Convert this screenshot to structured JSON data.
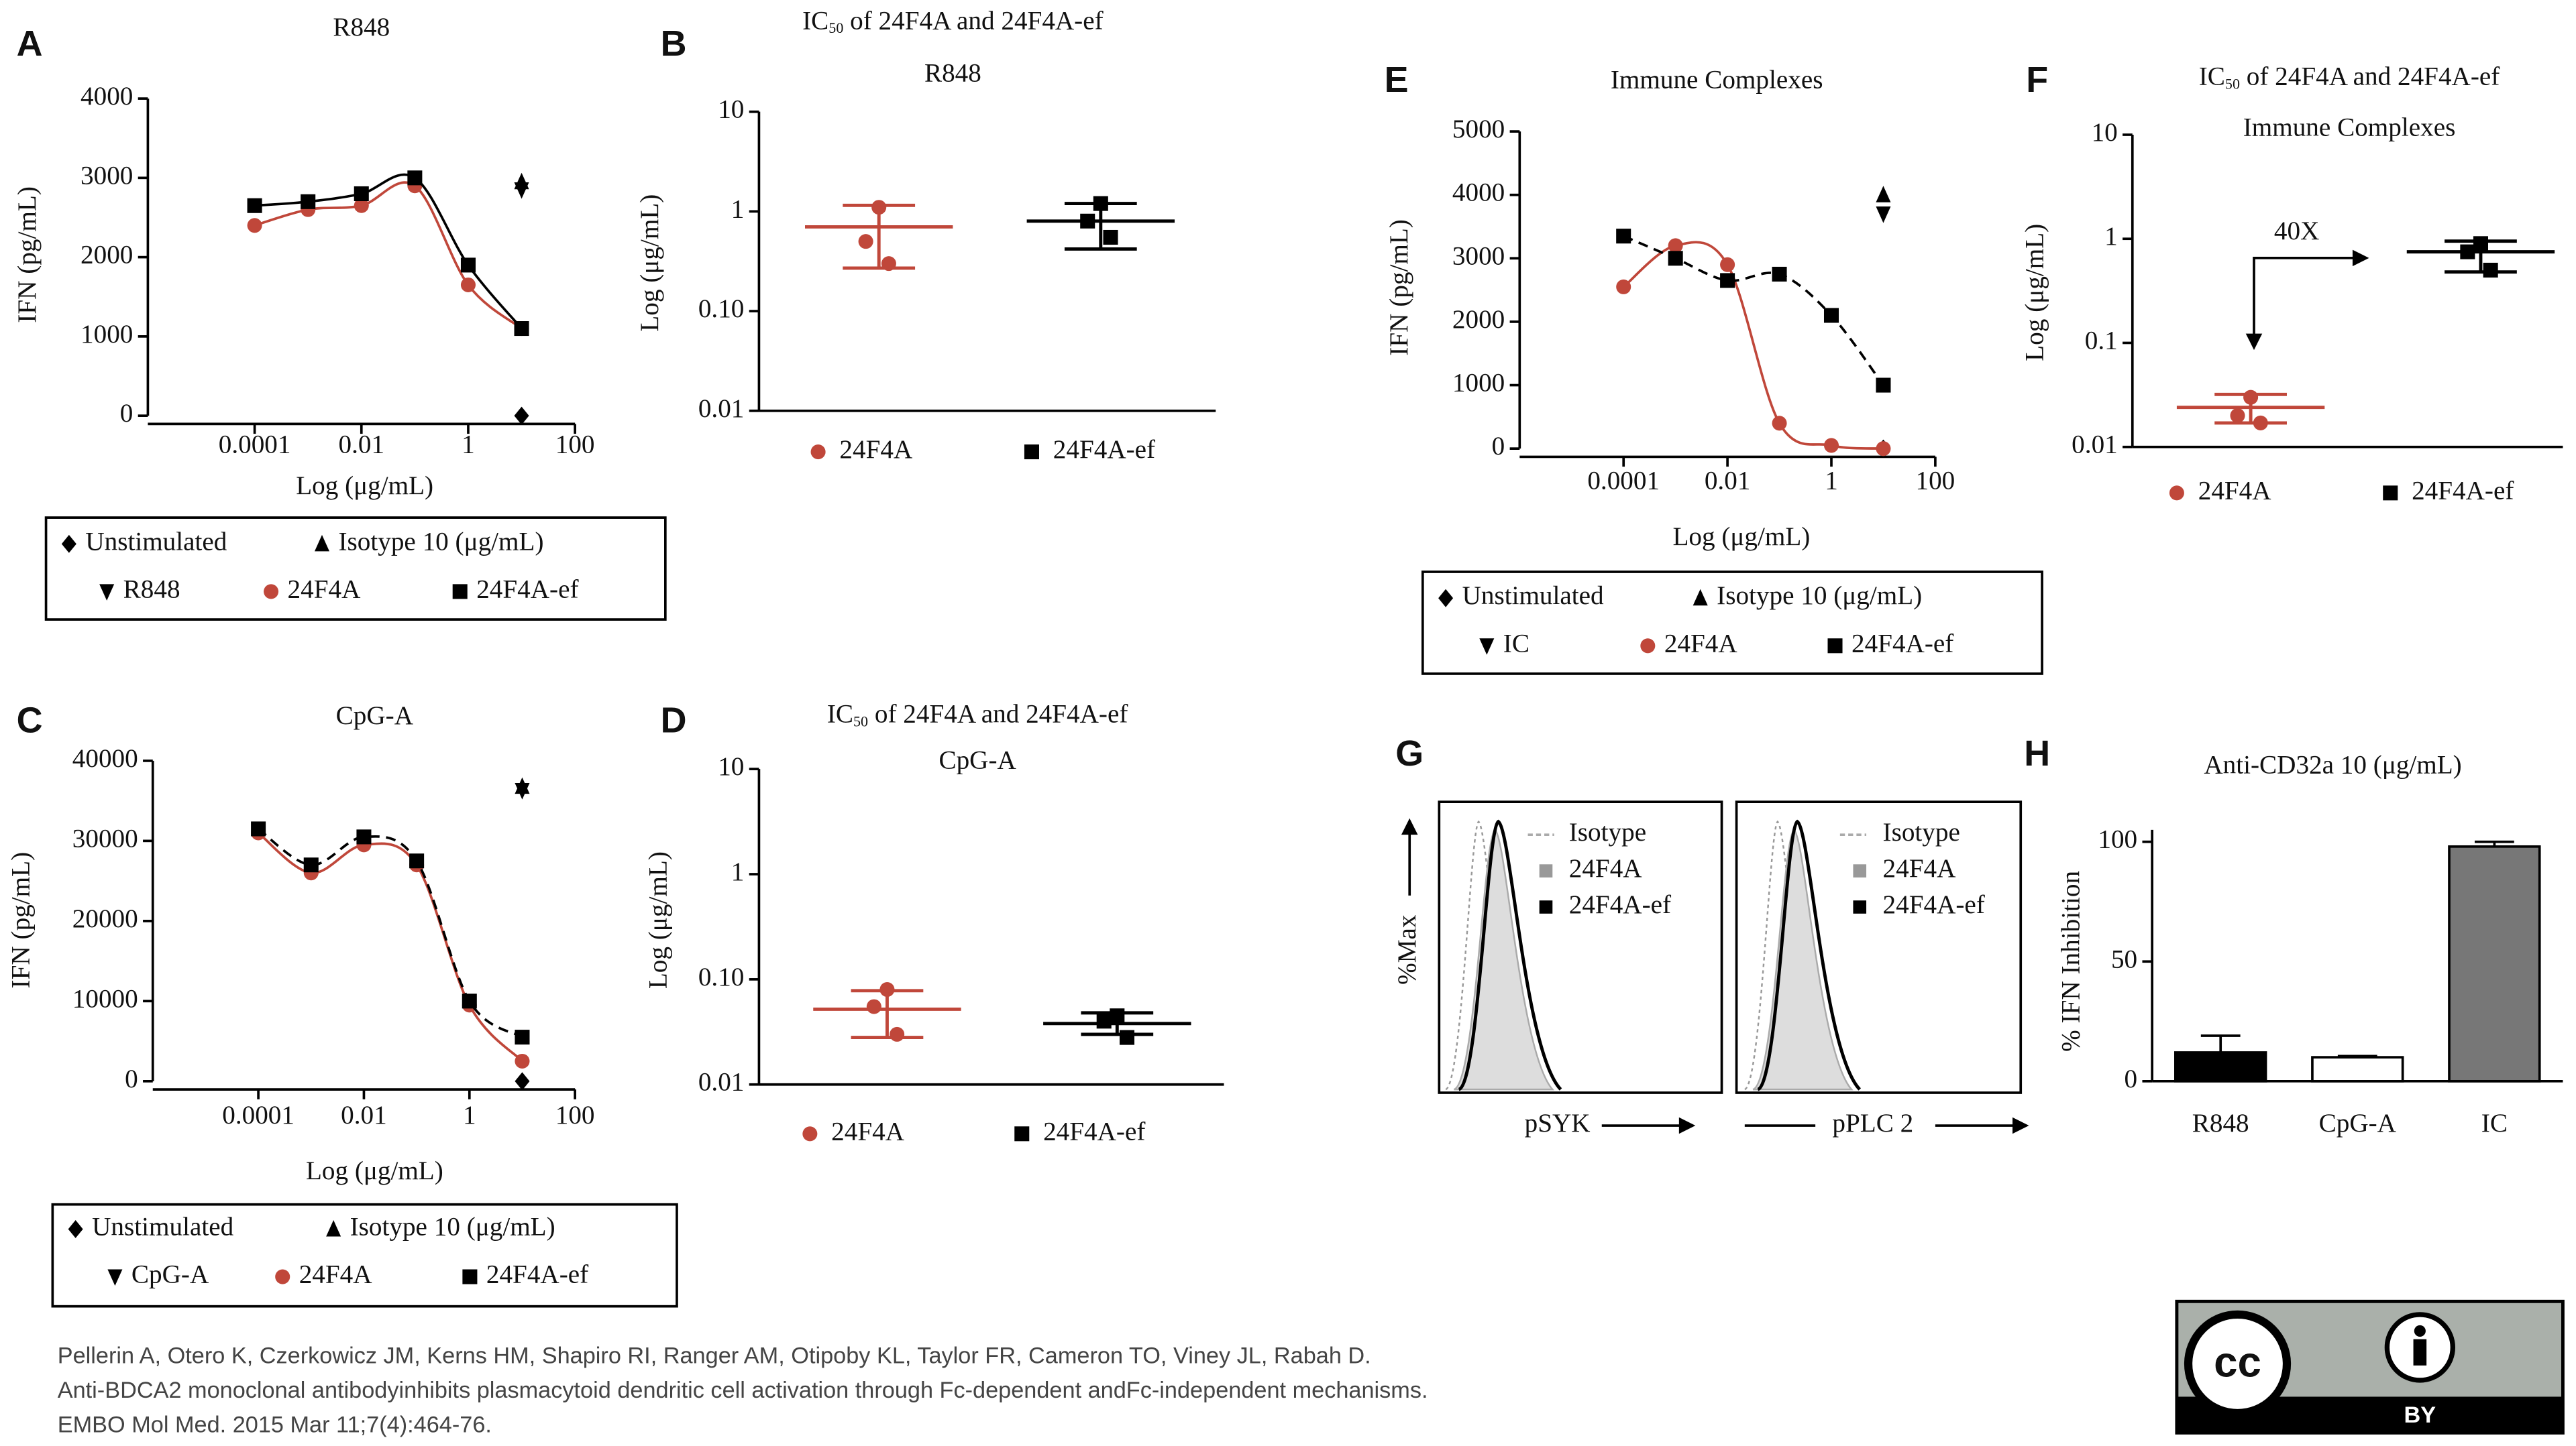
{
  "chart_data": [
    {
      "type": "line",
      "panel": "A",
      "title": "R848",
      "xlabel": "Log (μg/mL)",
      "ylabel": "IFN (pg/mL)",
      "xscale": "log",
      "xlim": [
        1e-06,
        100
      ],
      "xticks": [
        0.0001,
        0.01,
        1,
        100
      ],
      "ylim": [
        0,
        4000
      ],
      "yticks": [
        0,
        1000,
        2000,
        3000,
        4000
      ],
      "x": [
        0.0001,
        0.001,
        0.01,
        0.1,
        1,
        10
      ],
      "series": [
        {
          "name": "Unstimulated",
          "color": "#000000",
          "marker": "diamond",
          "values": [
            null,
            null,
            null,
            null,
            null,
            0
          ]
        },
        {
          "name": "Isotype 10 (μg/mL)",
          "color": "#000000",
          "marker": "triangle-up",
          "values": [
            null,
            null,
            null,
            null,
            null,
            2950
          ]
        },
        {
          "name": "R848",
          "color": "#000000",
          "marker": "triangle-down",
          "values": [
            null,
            null,
            null,
            null,
            null,
            2850
          ]
        },
        {
          "name": "24F4A",
          "color": "#c0473a",
          "marker": "circle",
          "fit": true,
          "values": [
            2400,
            2600,
            2650,
            2900,
            1650,
            1100
          ]
        },
        {
          "name": "24F4A-ef",
          "color": "#000000",
          "marker": "square",
          "fit": true,
          "values": [
            2650,
            2700,
            2800,
            3000,
            1900,
            1100
          ]
        }
      ]
    },
    {
      "type": "dot",
      "panel": "B",
      "title": "IC",
      "title_sub": "50",
      "title_rest": "of 24F4A and 24F4A-ef",
      "subtitle": "R848",
      "ylabel": "Log (μg/mL)",
      "yscale": "log",
      "ylim": [
        0.01,
        10
      ],
      "yticks": [
        0.01,
        {
          "value": 0.1,
          "label": "0.10"
        },
        1,
        10
      ],
      "series": [
        {
          "name": "24F4A",
          "color": "#c0473a",
          "marker": "circle",
          "values": [
            1.1,
            0.5,
            0.3
          ],
          "mean": 0.7,
          "range": [
            0.27,
            1.15
          ]
        },
        {
          "name": "24F4A-ef",
          "color": "#000000",
          "marker": "square",
          "values": [
            1.2,
            0.8,
            0.55
          ],
          "mean": 0.8,
          "range": [
            0.42,
            1.2
          ]
        }
      ]
    },
    {
      "type": "line",
      "panel": "C",
      "title": "CpG-A",
      "xlabel": "Log (μg/mL)",
      "ylabel": "IFN (pg/mL)",
      "xscale": "log",
      "xlim": [
        1e-06,
        100
      ],
      "xticks": [
        0.0001,
        0.01,
        1,
        100
      ],
      "ylim": [
        0,
        40000
      ],
      "yticks": [
        0,
        10000,
        20000,
        30000,
        40000
      ],
      "x": [
        0.0001,
        0.001,
        0.01,
        0.1,
        1,
        10
      ],
      "series": [
        {
          "name": "Unstimulated",
          "color": "#000000",
          "marker": "diamond",
          "values": [
            null,
            null,
            null,
            null,
            null,
            0
          ]
        },
        {
          "name": "Isotype 10 (μg/mL)",
          "color": "#000000",
          "marker": "triangle-up",
          "values": [
            null,
            null,
            null,
            null,
            null,
            36800
          ]
        },
        {
          "name": "CpG-A",
          "color": "#000000",
          "marker": "triangle-down",
          "values": [
            null,
            null,
            null,
            null,
            null,
            36300
          ]
        },
        {
          "name": "24F4A",
          "color": "#c0473a",
          "marker": "circle",
          "fit": true,
          "values": [
            31000,
            26000,
            29500,
            27000,
            9500,
            2500
          ]
        },
        {
          "name": "24F4A-ef",
          "color": "#000000",
          "marker": "square",
          "fit": true,
          "dash": true,
          "values": [
            31500,
            27000,
            30500,
            27500,
            10000,
            5500
          ]
        }
      ]
    },
    {
      "type": "dot",
      "panel": "D",
      "title": "IC",
      "title_sub": "50",
      "title_rest": "of 24F4A and 24F4A-ef",
      "subtitle": "CpG-A",
      "ylabel": "Log (μg/mL)",
      "yscale": "log",
      "ylim": [
        0.01,
        10
      ],
      "yticks": [
        0.01,
        {
          "value": 0.1,
          "label": "0.10"
        },
        1,
        10
      ],
      "series": [
        {
          "name": "24F4A",
          "color": "#c0473a",
          "marker": "circle",
          "values": [
            0.08,
            0.055,
            0.03
          ],
          "mean": 0.052,
          "range": [
            0.028,
            0.078
          ]
        },
        {
          "name": "24F4A-ef",
          "color": "#000000",
          "marker": "square",
          "values": [
            0.045,
            0.04,
            0.028
          ],
          "mean": 0.038,
          "range": [
            0.03,
            0.048
          ]
        }
      ]
    },
    {
      "type": "line",
      "panel": "E",
      "title": "Immune Complexes",
      "xlabel": "Log (μg/mL)",
      "ylabel": "IFN (pg/mL)",
      "xscale": "log",
      "xlim": [
        1e-06,
        100
      ],
      "xticks": [
        0.0001,
        0.01,
        1,
        100
      ],
      "ylim": [
        0,
        5000
      ],
      "yticks": [
        0,
        1000,
        2000,
        3000,
        4000,
        5000
      ],
      "x": [
        0.0001,
        0.001,
        0.01,
        0.1,
        1,
        10
      ],
      "series": [
        {
          "name": "Unstimulated",
          "color": "#000000",
          "marker": "diamond",
          "values": [
            null,
            null,
            null,
            null,
            null,
            0
          ]
        },
        {
          "name": "Isotype 10 (μg/mL)",
          "color": "#000000",
          "marker": "triangle-up",
          "values": [
            null,
            null,
            null,
            null,
            null,
            4000
          ]
        },
        {
          "name": "IC",
          "color": "#000000",
          "marker": "triangle-down",
          "values": [
            null,
            null,
            null,
            null,
            null,
            3700
          ]
        },
        {
          "name": "24F4A",
          "color": "#c0473a",
          "marker": "circle",
          "fit": true,
          "values": [
            2550,
            3200,
            2900,
            400,
            50,
            0
          ]
        },
        {
          "name": "24F4A-ef",
          "color": "#000000",
          "marker": "square",
          "fit": true,
          "dash": true,
          "values": [
            3350,
            3000,
            2650,
            2750,
            2100,
            1000
          ]
        }
      ]
    },
    {
      "type": "dot",
      "panel": "F",
      "title": "IC",
      "title_sub": "50",
      "title_rest": "of 24F4A and 24F4A-ef",
      "subtitle": "Immune Complexes",
      "ylabel": "Log (μg/mL)",
      "yscale": "log",
      "ylim": [
        0.01,
        10
      ],
      "yticks": [
        0.01,
        0.1,
        1,
        10
      ],
      "annotation": "40X",
      "series": [
        {
          "name": "24F4A",
          "color": "#c0473a",
          "marker": "circle",
          "values": [
            0.03,
            0.02,
            0.017
          ],
          "mean": 0.024,
          "range": [
            0.017,
            0.032
          ]
        },
        {
          "name": "24F4A-ef",
          "color": "#000000",
          "marker": "square",
          "values": [
            0.9,
            0.75,
            0.5
          ],
          "mean": 0.75,
          "range": [
            0.48,
            0.95
          ]
        }
      ]
    },
    {
      "type": "flow",
      "panel": "G",
      "ylabel": "%Max",
      "panels": [
        {
          "xlabel": "pSYK",
          "legend": [
            "Isotype",
            "24F4A",
            "24F4A-ef"
          ]
        },
        {
          "xlabel": "pPLC 2",
          "legend": [
            "Isotype",
            "24F4A",
            "24F4A-ef"
          ]
        }
      ]
    },
    {
      "type": "bar",
      "panel": "H",
      "title": "Anti-CD32a 10 (μg/mL)",
      "ylabel": "% IFN Inhibition",
      "categories": [
        "R848",
        "CpG-A",
        "IC"
      ],
      "values": [
        12,
        10,
        98
      ],
      "errors": [
        7,
        0.5,
        2
      ],
      "colors": [
        "#000000",
        "#ffffff",
        "#777777"
      ],
      "ylim": [
        0,
        105
      ],
      "yticks": [
        0,
        50,
        100
      ]
    }
  ],
  "citation": {
    "authors": "Pellerin A, Otero K, Czerkowicz JM, Kerns HM, Shapiro RI, Ranger AM, Otipoby KL, Taylor FR, Cameron TO, Viney JL, Rabah D.",
    "title": "Anti-BDCA2 monoclonal antibodyinhibits plasmacytoid dendritic cell activation through Fc-dependent andFc-independent mechanisms.",
    "source": "EMBO Mol Med. 2015 Mar 11;7(4):464-76."
  },
  "license": {
    "icon": "cc",
    "label": "BY"
  }
}
